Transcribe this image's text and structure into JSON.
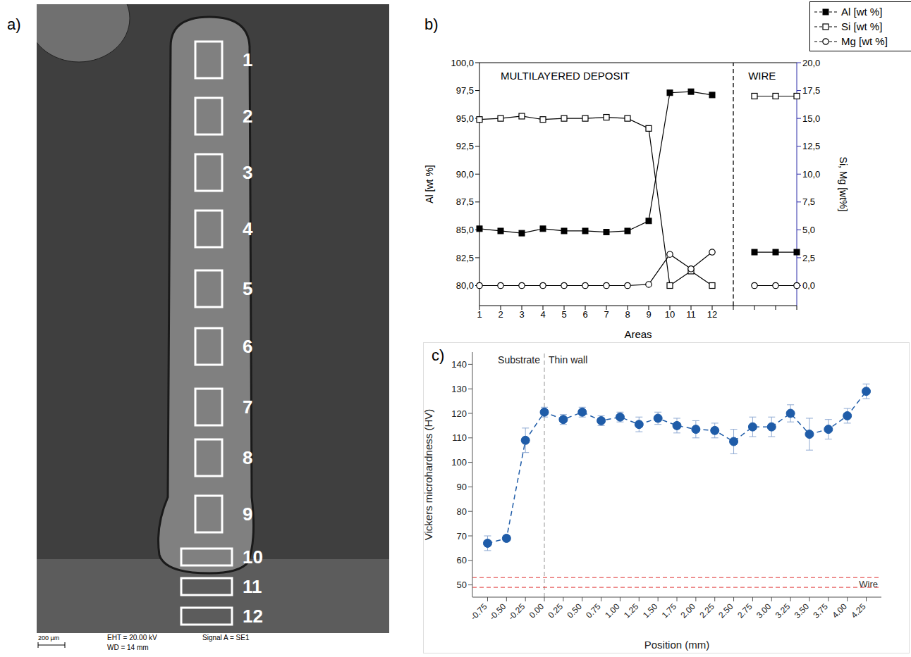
{
  "panel_a": {
    "panel": "a)",
    "area_labels": [
      "1",
      "2",
      "3",
      "4",
      "5",
      "6",
      "7",
      "8",
      "9",
      "10",
      "11",
      "12"
    ],
    "scale_bar": "200 µm",
    "info": [
      "EHT = 20.00 kV",
      "WD =  14 mm",
      "Signal A = SE1"
    ]
  },
  "chart_data": [
    {
      "panel": "b)",
      "type": "line",
      "categories": [
        "1",
        "2",
        "3",
        "4",
        "5",
        "6",
        "7",
        "8",
        "9",
        "10",
        "11",
        "12",
        null,
        null,
        null,
        null
      ],
      "x_label": "Areas",
      "y_label": "Al [wt %]",
      "y2_label": "Si, Mg [wt%]",
      "annotations": [
        "MULTILAYERED DEPOSIT",
        "WIRE"
      ],
      "legend": "top right",
      "ylim": [
        78.2,
        100
      ],
      "yticks": [
        {
          "value": 80,
          "label": "80,0"
        },
        {
          "value": 82.5,
          "label": "82,5"
        },
        {
          "value": 85,
          "label": "85,0"
        },
        {
          "value": 87.5,
          "label": "87,5"
        },
        {
          "value": 90,
          "label": "90,0"
        },
        {
          "value": 92.5,
          "label": "92,5"
        },
        {
          "value": 95,
          "label": "95,0"
        },
        {
          "value": 97.5,
          "label": "97,5"
        },
        {
          "value": 100,
          "label": "100,0"
        }
      ],
      "y2lim": [
        -1.8,
        20
      ],
      "y2ticks": [
        {
          "value": 0,
          "label": "0,0"
        },
        {
          "value": 2.5,
          "label": "2,5"
        },
        {
          "value": 5,
          "label": "5,0"
        },
        {
          "value": 7.5,
          "label": "7,5"
        },
        {
          "value": 10,
          "label": "10,0"
        },
        {
          "value": 12.5,
          "label": "12,5"
        },
        {
          "value": 15,
          "label": "15,0"
        },
        {
          "value": 17.5,
          "label": "17,5"
        },
        {
          "value": 20,
          "label": "20,0"
        }
      ],
      "series": [
        {
          "name": "Al [wt %]",
          "color": "#000000",
          "marker": "filled_square",
          "values": [
            85.1,
            84.9,
            84.7,
            85.1,
            84.9,
            84.9,
            84.8,
            84.9,
            85.8,
            97.3,
            97.4,
            97.1,
            null,
            83.0,
            83.0,
            83.0
          ]
        },
        {
          "name": "Si [wt %]",
          "color": "#000000",
          "marker": "open_square",
          "axis": "y2",
          "values": [
            14.9,
            15.0,
            15.2,
            14.9,
            15.0,
            15.0,
            15.1,
            15.0,
            14.1,
            0.0,
            1.3,
            0.0,
            null,
            17.0,
            17.0,
            17.0
          ]
        },
        {
          "name": "Mg [wt %]",
          "color": "#000000",
          "marker": "open_circle",
          "axis": "y2",
          "values": [
            0.0,
            0.0,
            0.0,
            0.0,
            0.0,
            0.0,
            0.0,
            0.0,
            0.1,
            2.8,
            1.5,
            3.0,
            null,
            0.0,
            0.0,
            0.0
          ]
        }
      ]
    },
    {
      "panel": "c)",
      "type": "line",
      "x_label": "Position (mm)",
      "y_label": "Vickers microhardness (HV)",
      "annotations": [
        "Substrate",
        "Thin wall"
      ],
      "boundary": 0,
      "color": "#1f5ca8",
      "line_style": "dashed",
      "marker": "circle",
      "x": [
        -0.75,
        -0.5,
        -0.25,
        0,
        0.25,
        0.5,
        0.75,
        1.0,
        1.25,
        1.5,
        1.75,
        2.0,
        2.25,
        2.5,
        2.75,
        3.0,
        3.25,
        3.5,
        3.75,
        4.0,
        4.25
      ],
      "values": [
        67,
        69,
        109,
        120.5,
        117.5,
        120.5,
        117,
        118.5,
        115.5,
        118,
        115,
        113.5,
        113,
        108.5,
        114.5,
        114.5,
        120,
        111.5,
        113.5,
        119,
        129
      ],
      "errors": [
        3,
        1,
        5,
        2,
        2,
        2,
        2,
        2,
        3,
        2.5,
        3,
        3.5,
        3,
        5,
        4,
        4,
        3.5,
        6.5,
        4,
        3,
        3
      ],
      "xlim": [
        -0.95,
        4.45
      ],
      "xticks": [
        -0.75,
        {
          "value": -0.5,
          "label": "-0.50"
        },
        -0.25,
        {
          "value": 0,
          "label": "0.00"
        },
        0.25,
        {
          "value": 0.5,
          "label": "0.50"
        },
        0.75,
        {
          "value": 1,
          "label": "1.00"
        },
        1.25,
        {
          "value": 1.5,
          "label": "1.50"
        },
        1.75,
        {
          "value": 2,
          "label": "2.00"
        },
        2.25,
        {
          "value": 2.5,
          "label": "2.50"
        },
        2.75,
        {
          "value": 3,
          "label": "3.00"
        },
        3.25,
        {
          "value": 3.5,
          "label": "3.50"
        },
        3.75,
        {
          "value": 4,
          "label": "4.00"
        },
        4.25
      ],
      "ylim": [
        45,
        145
      ],
      "yticks": [
        50,
        60,
        70,
        80,
        90,
        100,
        110,
        120,
        130,
        140
      ],
      "reference": {
        "label": "Wire",
        "values": [
          49,
          53
        ],
        "color": "#e03030"
      }
    }
  ]
}
